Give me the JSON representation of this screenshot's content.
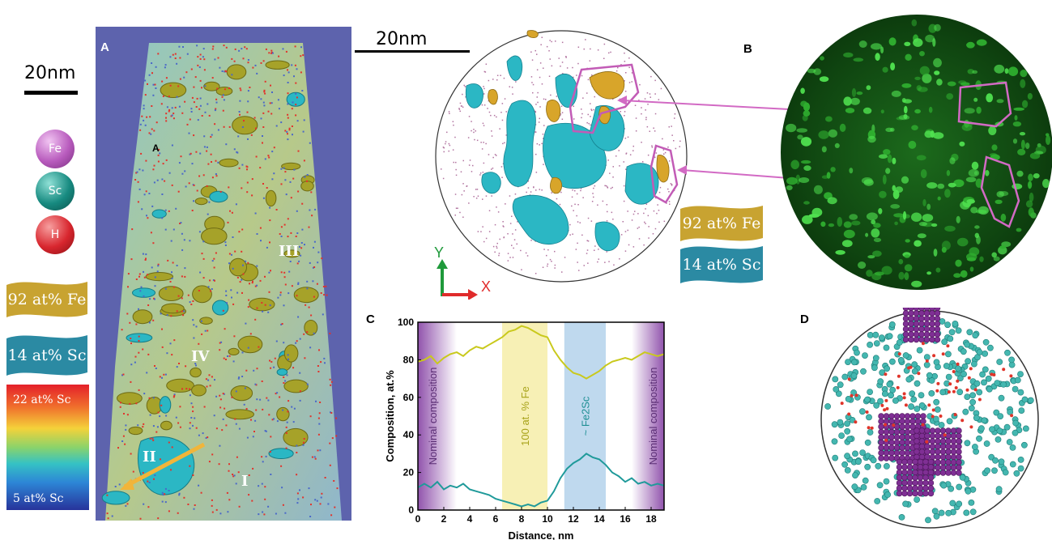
{
  "left": {
    "scale_label": "20nm",
    "elements": [
      {
        "symbol": "Fe",
        "color": "#b85bbd"
      },
      {
        "symbol": "Sc",
        "color": "#178a80"
      },
      {
        "symbol": "H",
        "color": "#d8262e"
      }
    ],
    "fe_flag": "92 at% Fe",
    "sc_flag": "14 at% Sc",
    "colorbar_top": "22 at% Sc",
    "colorbar_bottom": "5 at% Sc"
  },
  "panel_a": {
    "letter": "A",
    "inner_label": "A",
    "regions": [
      "III",
      "IV",
      "II",
      "I"
    ]
  },
  "panel_b": {
    "letter": "B",
    "scale_label": "20nm",
    "axis_y": "Y",
    "axis_x": "X",
    "fe_flag": "92 at% Fe",
    "sc_flag": "14 at% Sc"
  },
  "panel_c": {
    "letter": "C",
    "ylabel": "Composition, at.%",
    "xlabel": "Distance, nm",
    "band_labels": [
      "Nominal composition",
      "100 at. % Fe",
      "~ Fe2Sc",
      "Nominal composition"
    ],
    "colors": {
      "fe": "#c9c91c",
      "sc": "#1f9a9a",
      "nominal": "#8b4aa8",
      "fe_band": "#f7f0b5",
      "sc_band": "#bfd9ee"
    }
  },
  "panel_d": {
    "letter": "D"
  },
  "chart_data": {
    "type": "line",
    "xlabel": "Distance, nm",
    "ylabel": "Composition, at.%",
    "xlim": [
      0,
      19
    ],
    "ylim": [
      0,
      100
    ],
    "xticks": [
      0,
      2,
      4,
      6,
      8,
      10,
      12,
      14,
      16,
      18
    ],
    "yticks": [
      0,
      20,
      40,
      60,
      80,
      100
    ],
    "x": [
      0,
      0.5,
      1,
      1.5,
      2,
      2.5,
      3,
      3.5,
      4,
      4.5,
      5,
      5.5,
      6,
      6.5,
      7,
      7.5,
      8,
      8.5,
      9,
      9.5,
      10,
      10.5,
      11,
      11.5,
      12,
      12.5,
      13,
      13.5,
      14,
      14.5,
      15,
      15.5,
      16,
      16.5,
      17,
      17.5,
      18,
      18.5,
      19
    ],
    "series": [
      {
        "values": [
          79,
          80,
          82,
          78,
          81,
          83,
          84,
          82,
          85,
          87,
          86,
          88,
          90,
          92,
          95,
          96,
          98,
          97,
          95,
          93,
          92,
          85,
          80,
          76,
          73,
          72,
          70,
          72,
          74,
          77,
          79,
          80,
          81,
          80,
          82,
          84,
          83,
          82,
          83
        ]
      },
      {
        "values": [
          12,
          14,
          12,
          15,
          11,
          13,
          12,
          14,
          11,
          10,
          9,
          8,
          6,
          5,
          4,
          3,
          2,
          3,
          2,
          4,
          5,
          10,
          17,
          22,
          25,
          27,
          30,
          28,
          27,
          24,
          20,
          18,
          15,
          17,
          14,
          15,
          13,
          14,
          13
        ]
      }
    ],
    "bands": [
      {
        "label": "Nominal composition",
        "x0": 0,
        "x1": 3
      },
      {
        "label": "100 at. % Fe",
        "x0": 6.5,
        "x1": 10
      },
      {
        "label": "~ Fe2Sc",
        "x0": 11.3,
        "x1": 14.5
      },
      {
        "label": "Nominal composition",
        "x0": 16.5,
        "x1": 19
      }
    ]
  }
}
